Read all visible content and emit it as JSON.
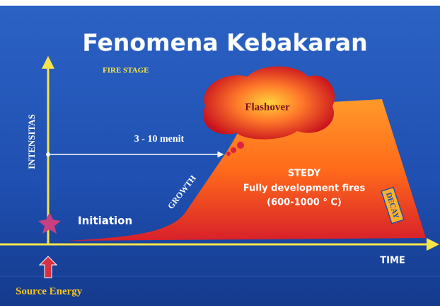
{
  "header": {
    "title": "Fenomena Kebakaran",
    "subtitle": "FIRE STAGE"
  },
  "axes": {
    "y_label": "INTENSITAS",
    "x_label": "TIME"
  },
  "stages": {
    "flashover": "Flashover",
    "duration": "3 - 10 menit",
    "growth": "GROWTH",
    "steady": "STEDY",
    "steady_desc": "Fully development fires",
    "steady_temp": "(600-1000 ° C)",
    "decay": "DECAY",
    "initiation": "Initiation"
  },
  "source": "Source Energy"
}
